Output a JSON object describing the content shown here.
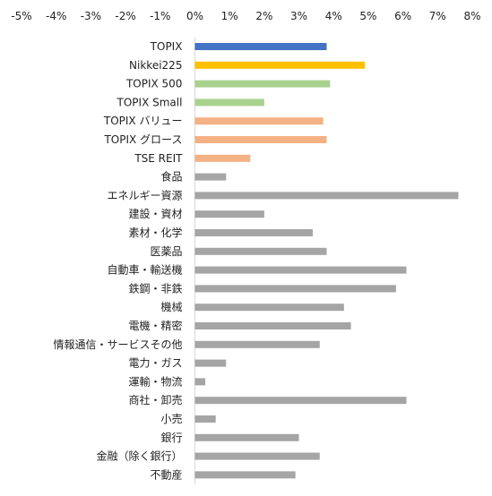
{
  "chart_data": {
    "type": "bar",
    "orientation": "horizontal",
    "xlim": [
      -5,
      8
    ],
    "x_ticks": [
      "-5%",
      "-4%",
      "-3%",
      "-2%",
      "-1%",
      "0%",
      "1%",
      "2%",
      "3%",
      "4%",
      "5%",
      "6%",
      "7%",
      "8%"
    ],
    "x_axis_position": "top",
    "grid": false,
    "legend": "none",
    "categories": [
      "TOPIX",
      "Nikkei225",
      "TOPIX 500",
      "TOPIX Small",
      "TOPIX バリュー",
      "TOPIX グロース",
      "TSE REIT",
      "食品",
      "エネルギー資源",
      "建設・資材",
      "素材・化学",
      "医薬品",
      "自動車・輸送機",
      "鉄鋼・非鉄",
      "機械",
      "電機・精密",
      "情報通信・サービスその他",
      "電力・ガス",
      "運輸・物流",
      "商社・卸売",
      "小売",
      "銀行",
      "金融（除く銀行）",
      "不動産"
    ],
    "values": [
      3.8,
      4.9,
      3.9,
      2.0,
      3.7,
      3.8,
      1.6,
      0.9,
      7.6,
      2.0,
      3.4,
      3.8,
      6.1,
      5.8,
      4.3,
      4.5,
      3.6,
      0.9,
      0.3,
      6.1,
      0.6,
      3.0,
      3.6,
      2.9
    ],
    "colors": [
      "#4472c4",
      "#ffc000",
      "#a9d18e",
      "#a9d18e",
      "#f4b183",
      "#f4b183",
      "#f4b183",
      "#a5a5a5",
      "#a5a5a5",
      "#a5a5a5",
      "#a5a5a5",
      "#a5a5a5",
      "#a5a5a5",
      "#a5a5a5",
      "#a5a5a5",
      "#a5a5a5",
      "#a5a5a5",
      "#a5a5a5",
      "#a5a5a5",
      "#a5a5a5",
      "#a5a5a5",
      "#a5a5a5",
      "#a5a5a5",
      "#a5a5a5"
    ]
  }
}
